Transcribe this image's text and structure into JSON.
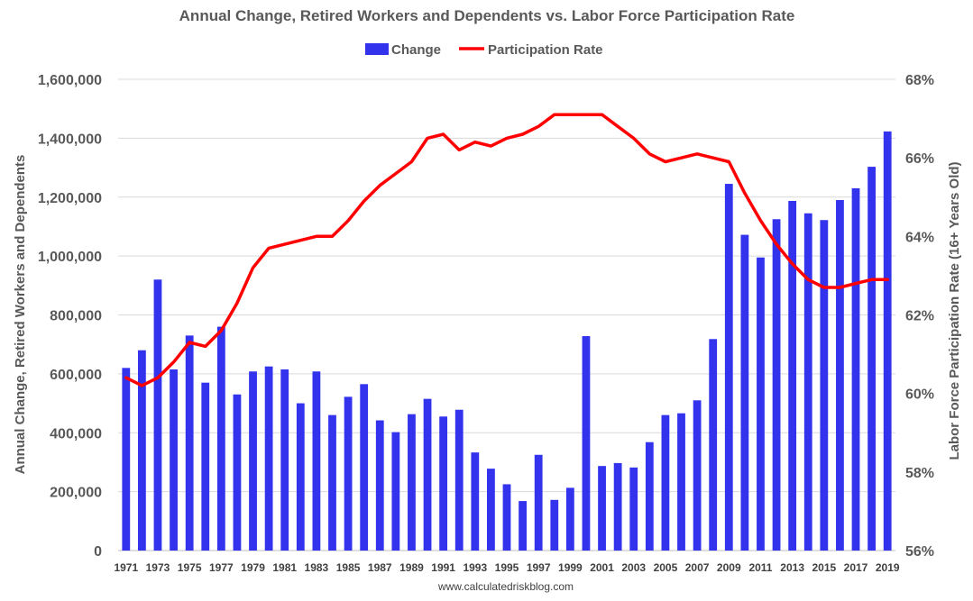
{
  "chart_data": {
    "type": "bar+line",
    "title": "Annual Change, Retired Workers and Dependents vs. Labor Force Participation Rate",
    "source": "www.calculatedriskblog.com",
    "ylabel_left": "Annual Change, Retired Workers and Dependents",
    "ylabel_right": "Labor Force Participation Rate (16+ Years Old)",
    "ylim_left": [
      0,
      1600000
    ],
    "ylim_right": [
      56,
      68
    ],
    "left_ticks": [
      "0",
      "200,000",
      "400,000",
      "600,000",
      "800,000",
      "1,000,000",
      "1,200,000",
      "1,400,000",
      "1,600,000"
    ],
    "left_tick_values": [
      0,
      200000,
      400000,
      600000,
      800000,
      1000000,
      1200000,
      1400000,
      1600000
    ],
    "right_ticks": [
      "56%",
      "58%",
      "60%",
      "62%",
      "64%",
      "66%",
      "68%"
    ],
    "right_tick_values": [
      56,
      58,
      60,
      62,
      64,
      66,
      68
    ],
    "x_tick_labels": [
      "1971",
      "1973",
      "1975",
      "1977",
      "1979",
      "1981",
      "1983",
      "1985",
      "1987",
      "1989",
      "1991",
      "1993",
      "1995",
      "1997",
      "1999",
      "2001",
      "2003",
      "2005",
      "2007",
      "2009",
      "2011",
      "2013",
      "2015",
      "2017",
      "2019"
    ],
    "categories": [
      1971,
      1972,
      1973,
      1974,
      1975,
      1976,
      1977,
      1978,
      1979,
      1980,
      1981,
      1982,
      1983,
      1984,
      1985,
      1986,
      1987,
      1988,
      1989,
      1990,
      1991,
      1992,
      1993,
      1994,
      1995,
      1996,
      1997,
      1998,
      1999,
      2000,
      2001,
      2002,
      2003,
      2004,
      2005,
      2006,
      2007,
      2008,
      2009,
      2010,
      2011,
      2012,
      2013,
      2014,
      2015,
      2016,
      2017,
      2018,
      2019
    ],
    "legend": [
      "Change",
      "Participation Rate"
    ],
    "legend_position": "top-center",
    "series": [
      {
        "name": "Change",
        "type": "bar",
        "color": "#3333ee",
        "axis": "left",
        "values": [
          620000,
          680000,
          920000,
          615000,
          730000,
          570000,
          760000,
          530000,
          608000,
          625000,
          615000,
          500000,
          608000,
          460000,
          522000,
          565000,
          442000,
          402000,
          463000,
          515000,
          455000,
          478000,
          333000,
          278000,
          225000,
          168000,
          325000,
          172000,
          213000,
          728000,
          287000,
          297000,
          282000,
          368000,
          460000,
          466000,
          510000,
          718000,
          1245000,
          1072000,
          995000,
          1125000,
          1187000,
          1145000,
          1122000,
          1190000,
          1230000,
          1303000,
          1423000
        ]
      },
      {
        "name": "Participation Rate",
        "type": "line",
        "color": "#ff0000",
        "axis": "right",
        "values": [
          60.4,
          60.2,
          60.4,
          60.8,
          61.3,
          61.2,
          61.6,
          62.3,
          63.2,
          63.7,
          63.8,
          63.9,
          64.0,
          64.0,
          64.4,
          64.9,
          65.3,
          65.6,
          65.9,
          66.5,
          66.6,
          66.2,
          66.4,
          66.3,
          66.5,
          66.6,
          66.8,
          67.1,
          67.1,
          67.1,
          67.1,
          66.8,
          66.5,
          66.1,
          65.9,
          66.0,
          66.1,
          66.0,
          65.9,
          65.1,
          64.4,
          63.8,
          63.3,
          62.9,
          62.7,
          62.7,
          62.8,
          62.9,
          62.9
        ]
      }
    ]
  }
}
